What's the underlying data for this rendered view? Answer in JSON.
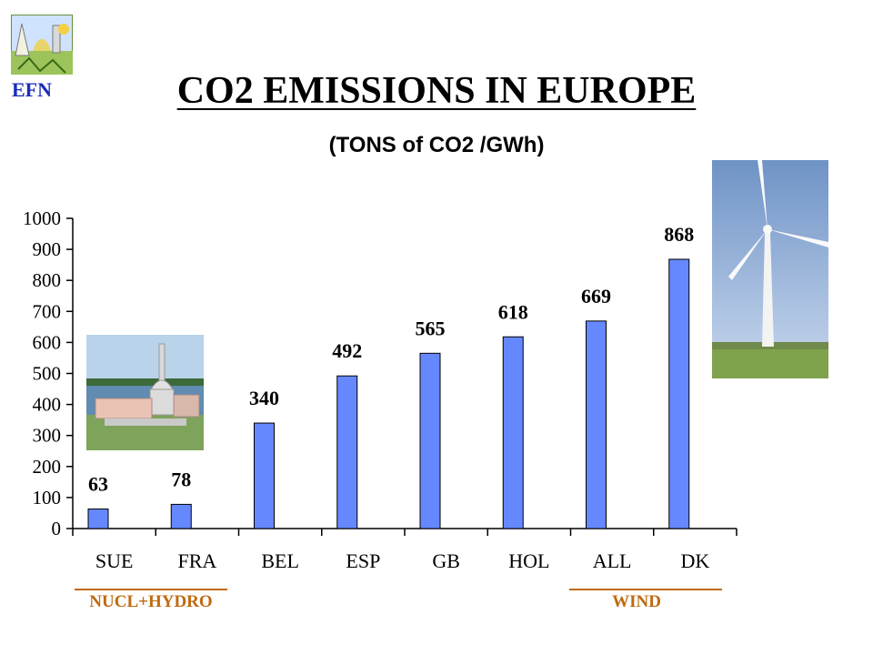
{
  "logo": {
    "text": "EFN",
    "icon": "efn-logo-icon"
  },
  "title": "CO2 EMISSIONS IN EUROPE",
  "subtitle": "(TONS of CO2 /GWh)",
  "photos": {
    "plant": "nuclear-plant-photo",
    "wind": "wind-turbine-photo"
  },
  "groups": [
    {
      "label": "NUCL+HYDRO"
    },
    {
      "label": "WIND"
    }
  ],
  "colors": {
    "bar": "#6688ff",
    "bar_stroke": "#000000",
    "title": "#000000",
    "logo_text": "#1c2db8",
    "group": "#c06a10"
  },
  "chart_data": {
    "type": "bar",
    "title": "CO2 EMISSIONS IN EUROPE",
    "subtitle": "(TONS of CO2 /GWh)",
    "categories": [
      "SUE",
      "FRA",
      "BEL",
      "ESP",
      "GB",
      "HOL",
      "ALL",
      "DK"
    ],
    "values": [
      63,
      78,
      340,
      492,
      565,
      618,
      669,
      868
    ],
    "data_labels": [
      "63",
      "78",
      "340",
      "492",
      "565",
      "618",
      "669",
      "868"
    ],
    "yticks": [
      0,
      100,
      200,
      300,
      400,
      500,
      600,
      700,
      800,
      900,
      1000
    ],
    "ylim": [
      0,
      1000
    ],
    "grid": false,
    "legend": "none"
  }
}
